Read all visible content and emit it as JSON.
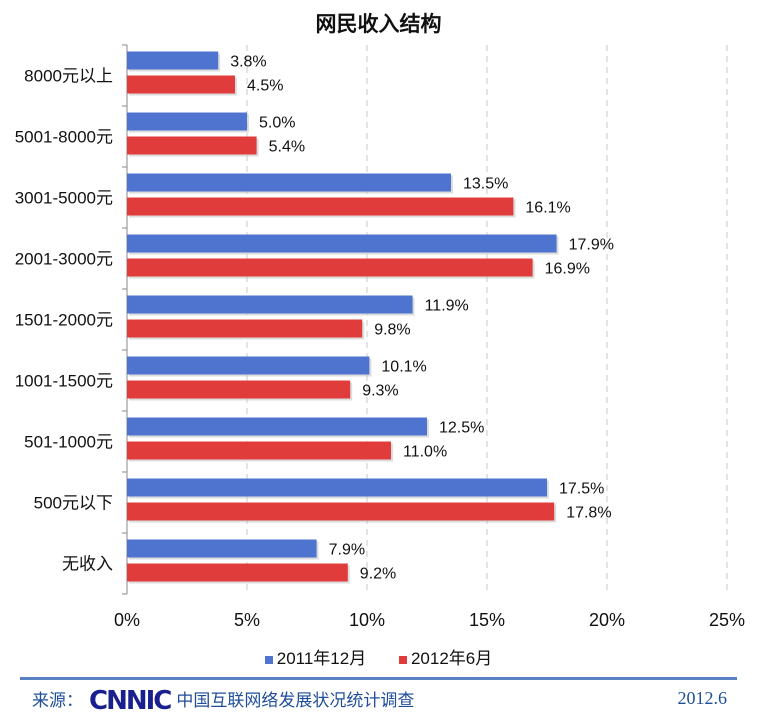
{
  "chart_data": {
    "type": "bar",
    "orientation": "horizontal",
    "title": "网民收入结构",
    "categories": [
      "8000元以上",
      "5001-8000元",
      "3001-5000元",
      "2001-3000元",
      "1501-2000元",
      "1001-1500元",
      "501-1000元",
      "500元以下",
      "无收入"
    ],
    "series": [
      {
        "name": "2011年12月",
        "color": "#4f74d0",
        "values": [
          3.8,
          5.0,
          13.5,
          17.9,
          11.9,
          10.1,
          12.5,
          17.5,
          7.9
        ],
        "labels": [
          "3.8%",
          "5.0%",
          "13.5%",
          "17.9%",
          "11.9%",
          "10.1%",
          "12.5%",
          "17.5%",
          "7.9%"
        ]
      },
      {
        "name": "2012年6月",
        "color": "#e03c3c",
        "values": [
          4.5,
          5.4,
          16.1,
          16.9,
          9.8,
          9.3,
          11.0,
          17.8,
          9.2
        ],
        "labels": [
          "4.5%",
          "5.4%",
          "16.1%",
          "16.9%",
          "9.8%",
          "9.3%",
          "11.0%",
          "17.8%",
          "9.2%"
        ]
      }
    ],
    "xlim": [
      0,
      25
    ],
    "xticks": [
      "0%",
      "5%",
      "10%",
      "15%",
      "20%",
      "25%"
    ],
    "grid": "vertical-dashed",
    "legend": "bottom"
  },
  "footer": {
    "source_label": "来源：",
    "logo": "CNNIC",
    "org": "中国互联网络发展状况统计调查",
    "date": "2012.6"
  }
}
